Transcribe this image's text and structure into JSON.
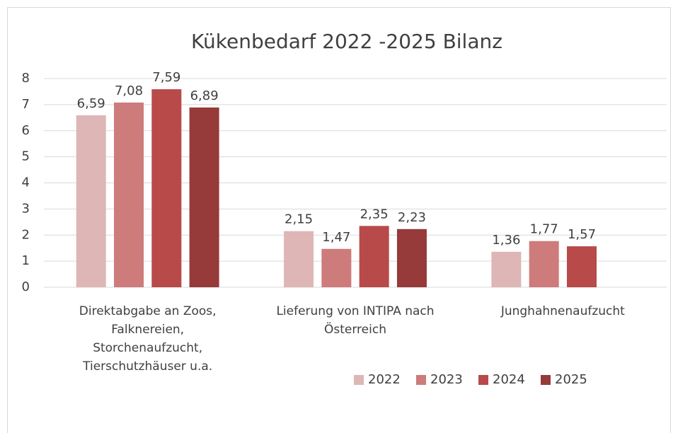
{
  "chart_data": {
    "type": "bar",
    "title": "Kükenbedarf 2022 -2025  Bilanz",
    "categories": [
      "Direktabgabe an Zoos, Falknereien, Storchenaufzucht, Tierschutzhäuser u.a.",
      "Lieferung von INTIPA nach Österreich",
      "Junghahnenaufzucht"
    ],
    "series": [
      {
        "name": "2022",
        "color": "#deb6b6",
        "values": [
          6.59,
          2.15,
          1.36
        ],
        "value_labels": [
          "6,59",
          "2,15",
          "1,36"
        ]
      },
      {
        "name": "2023",
        "color": "#cd7b7b",
        "values": [
          7.08,
          1.47,
          1.77
        ],
        "value_labels": [
          "7,08",
          "1,47",
          "1,77"
        ]
      },
      {
        "name": "2024",
        "color": "#b84a4a",
        "values": [
          7.59,
          2.35,
          1.57
        ],
        "value_labels": [
          "7,59",
          "2,35",
          "1,57"
        ]
      },
      {
        "name": "2025",
        "color": "#963a3a",
        "values": [
          6.89,
          2.23,
          null
        ],
        "value_labels": [
          "6,89",
          "2,23",
          null
        ]
      }
    ],
    "ylim": [
      0,
      8
    ],
    "yticks": [
      0,
      1,
      2,
      3,
      4,
      5,
      6,
      7,
      8
    ],
    "grid": true,
    "legend": "bottom"
  }
}
